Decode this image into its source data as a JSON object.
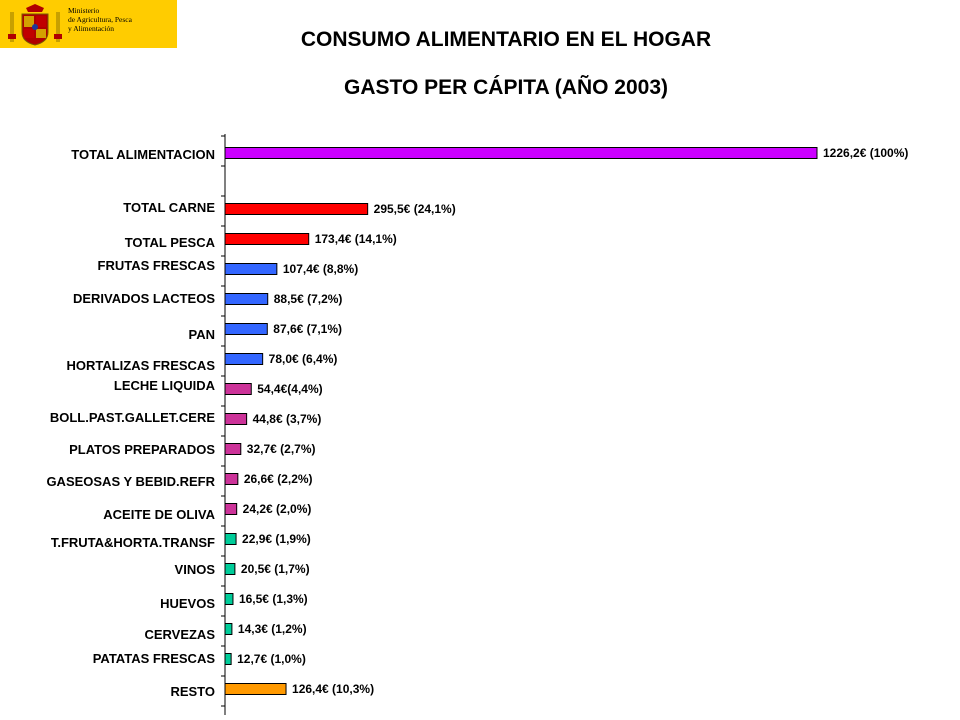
{
  "header": {
    "ministry_line1": "Ministerio",
    "ministry_line2": "de Agricultura, Pesca",
    "ministry_line3": "y Alimentación",
    "title": "CONSUMO ALIMENTARIO EN EL HOGAR",
    "subtitle": "GASTO PER CÁPITA (AÑO 2003)"
  },
  "colors": {
    "logo_background": "#ffcc00",
    "total": "#cc00ff",
    "meat_fish": "#ff0000",
    "blue_group": "#3366ff",
    "pink_group": "#cc3399",
    "green_group": "#00cc99",
    "resto": "#ff9900"
  },
  "chart_data": {
    "type": "bar",
    "orientation": "horizontal",
    "title": "GASTO PER CÁPITA (AÑO 2003)",
    "xlim": [
      0,
      1226.2
    ],
    "grid": false,
    "legend": "none",
    "categories": [
      "TOTAL ALIMENTACION",
      "TOTAL CARNE",
      "TOTAL PESCA",
      "FRUTAS FRESCAS",
      "DERIVADOS LACTEOS",
      "PAN",
      "HORTALIZAS FRESCAS",
      "LECHE LIQUIDA",
      "BOLL.PAST.GALLET.CERE",
      "PLATOS PREPARADOS",
      "GASEOSAS Y BEBID.REFR",
      "ACEITE DE OLIVA",
      "T.FRUTA&HORTA.TRANSF",
      "VINOS",
      "HUEVOS",
      "CERVEZAS",
      "PATATAS FRESCAS",
      "RESTO"
    ],
    "values": [
      1226.2,
      295.5,
      173.4,
      107.4,
      88.5,
      87.6,
      78.0,
      54.4,
      44.8,
      32.7,
      26.6,
      24.2,
      22.9,
      20.5,
      16.5,
      14.3,
      12.7,
      126.4
    ],
    "percent": [
      100,
      24.1,
      14.1,
      8.8,
      7.2,
      7.1,
      6.4,
      4.4,
      3.7,
      2.7,
      2.2,
      2.0,
      1.9,
      1.7,
      1.3,
      1.2,
      1.0,
      10.3
    ],
    "data_labels": [
      "1226,2€ (100%)",
      "295,5€ (24,1%)",
      "173,4€ (14,1%)",
      "107,4€ (8,8%)",
      "88,5€ (7,2%)",
      "87,6€ (7,1%)",
      "78,0€ (6,4%)",
      "54,4€(4,4%)",
      "44,8€ (3,7%)",
      "32,7€ (2,7%)",
      "26,6€ (2,2%)",
      "24,2€ (2,0%)",
      "22,9€ (1,9%)",
      "20,5€ (1,7%)",
      "16,5€ (1,3%)",
      "14,3€ (1,2%)",
      "12,7€ (1,0%)",
      "126,4€ (10,3%)"
    ],
    "bar_color_keys": [
      "total",
      "meat_fish",
      "meat_fish",
      "blue_group",
      "blue_group",
      "blue_group",
      "blue_group",
      "pink_group",
      "pink_group",
      "pink_group",
      "pink_group",
      "pink_group",
      "green_group",
      "green_group",
      "green_group",
      "green_group",
      "green_group",
      "resto"
    ]
  }
}
